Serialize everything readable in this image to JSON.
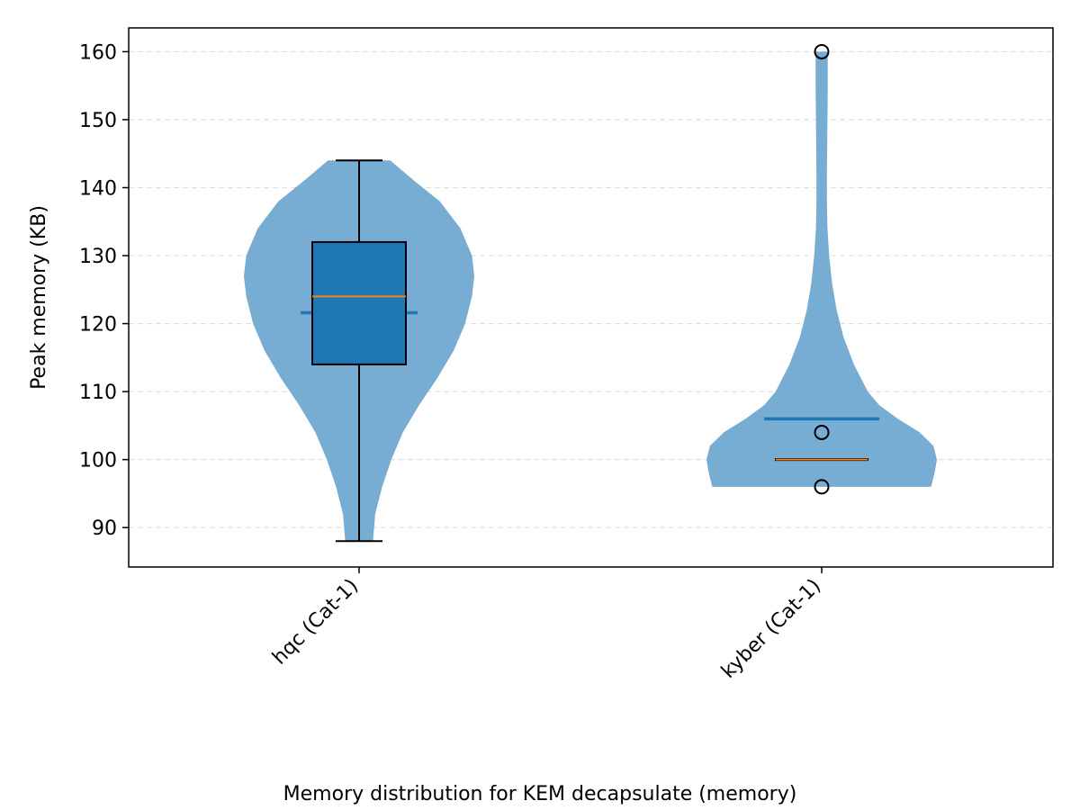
{
  "chart_data": {
    "type": "violin",
    "title": "Memory distribution for KEM decapsulate (memory)",
    "ylabel": "Peak memory (KB)",
    "xlabel": "",
    "ylim": [
      84.2,
      163.5
    ],
    "yticks": [
      90,
      100,
      110,
      120,
      130,
      140,
      150,
      160
    ],
    "grid": {
      "y": true,
      "style": "dashed"
    },
    "colors": {
      "violin": "#77acd3",
      "box": "#1f77b4",
      "mean": "#1f77b4",
      "median": "#ff7f0e",
      "grid": "#e0e0e0"
    },
    "categories": [
      "hqc (Cat-1)",
      "kyber (Cat-1)"
    ],
    "series": [
      {
        "category": "hqc (Cat-1)",
        "min": 88,
        "q1": 114,
        "median": 124,
        "q3": 132,
        "max": 144,
        "mean": 121.6,
        "whisker_low": 88,
        "whisker_high": 144,
        "show_box": true,
        "outliers": [],
        "density": [
          [
            88,
            0.12
          ],
          [
            92,
            0.14
          ],
          [
            96,
            0.2
          ],
          [
            100,
            0.28
          ],
          [
            104,
            0.38
          ],
          [
            108,
            0.52
          ],
          [
            112,
            0.68
          ],
          [
            116,
            0.82
          ],
          [
            120,
            0.92
          ],
          [
            124,
            0.98
          ],
          [
            127,
            1.0
          ],
          [
            130,
            0.98
          ],
          [
            134,
            0.88
          ],
          [
            138,
            0.7
          ],
          [
            141,
            0.48
          ],
          [
            144,
            0.27
          ]
        ]
      },
      {
        "category": "kyber (Cat-1)",
        "min": 96,
        "q1": 100,
        "median": 100,
        "q3": 100,
        "max": 160,
        "mean": 106,
        "whisker_low": 100,
        "whisker_high": 100,
        "show_box": false,
        "outliers": [
          96,
          104,
          160
        ],
        "density": [
          [
            96,
            0.95
          ],
          [
            98,
            0.98
          ],
          [
            100,
            1.0
          ],
          [
            102,
            0.97
          ],
          [
            104,
            0.85
          ],
          [
            106,
            0.66
          ],
          [
            108,
            0.5
          ],
          [
            110,
            0.4
          ],
          [
            114,
            0.28
          ],
          [
            118,
            0.19
          ],
          [
            122,
            0.13
          ],
          [
            126,
            0.09
          ],
          [
            130,
            0.065
          ],
          [
            134,
            0.05
          ],
          [
            138,
            0.045
          ],
          [
            142,
            0.045
          ],
          [
            146,
            0.048
          ],
          [
            150,
            0.05
          ],
          [
            154,
            0.052
          ],
          [
            157,
            0.052
          ],
          [
            160,
            0.052
          ]
        ]
      }
    ]
  }
}
